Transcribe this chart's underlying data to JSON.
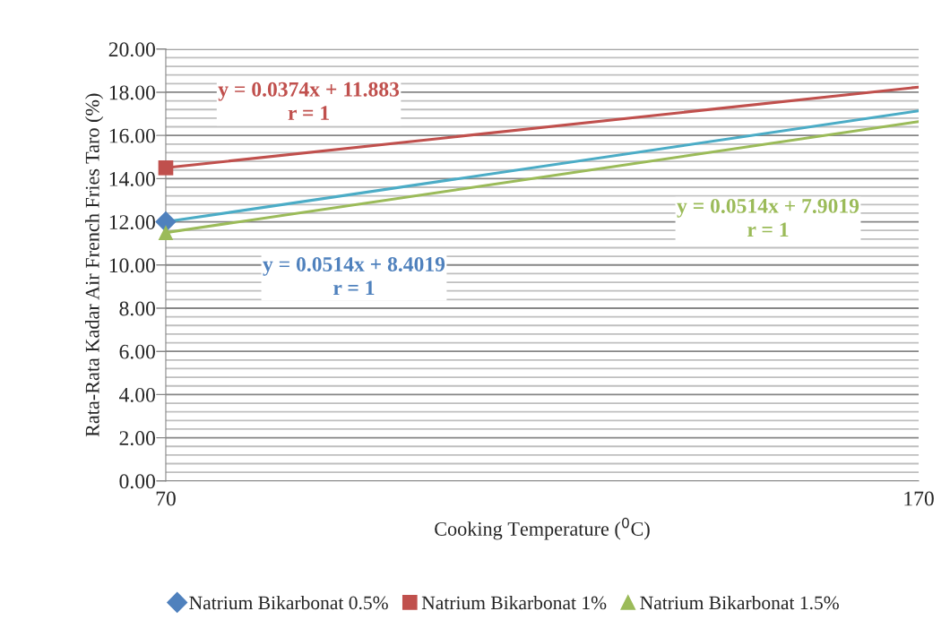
{
  "chart_data": {
    "type": "scatter",
    "xlabel": "Cooking Temperature ($^{0}$C)",
    "ylabel": "Rata-Rata Kadar Air French Fries Taro (%)",
    "xlim": [
      70,
      170
    ],
    "xticks": [
      70,
      170
    ],
    "ylim": [
      0,
      20
    ],
    "yticks": [
      {
        "value": 0,
        "label": "0.00"
      },
      {
        "value": 0.4,
        "label": null
      },
      {
        "value": 0.8,
        "label": null
      },
      {
        "value": 1.2,
        "label": null
      },
      {
        "value": 1.6,
        "label": null
      },
      {
        "value": 2,
        "label": "2.00"
      },
      {
        "value": 2.4,
        "label": null
      },
      {
        "value": 2.8,
        "label": null
      },
      {
        "value": 3.2,
        "label": null
      },
      {
        "value": 3.6,
        "label": null
      },
      {
        "value": 4,
        "label": "4.00"
      },
      {
        "value": 4.4,
        "label": null
      },
      {
        "value": 4.8,
        "label": null
      },
      {
        "value": 5.2,
        "label": null
      },
      {
        "value": 5.6,
        "label": null
      },
      {
        "value": 6,
        "label": "6.00"
      },
      {
        "value": 6.4,
        "label": null
      },
      {
        "value": 6.8,
        "label": null
      },
      {
        "value": 7.2,
        "label": null
      },
      {
        "value": 7.6,
        "label": null
      },
      {
        "value": 8,
        "label": "8.00"
      },
      {
        "value": 8.4,
        "label": null
      },
      {
        "value": 8.8,
        "label": null
      },
      {
        "value": 9.2,
        "label": null
      },
      {
        "value": 9.6,
        "label": null
      },
      {
        "value": 10,
        "label": "10.00"
      },
      {
        "value": 10.4,
        "label": null
      },
      {
        "value": 10.8,
        "label": null
      },
      {
        "value": 11.2,
        "label": null
      },
      {
        "value": 11.6,
        "label": null
      },
      {
        "value": 12,
        "label": "12.00"
      },
      {
        "value": 12.4,
        "label": null
      },
      {
        "value": 12.8,
        "label": null
      },
      {
        "value": 13.2,
        "label": null
      },
      {
        "value": 13.6,
        "label": null
      },
      {
        "value": 14,
        "label": "14.00"
      },
      {
        "value": 14.4,
        "label": null
      },
      {
        "value": 14.8,
        "label": null
      },
      {
        "value": 15.2,
        "label": null
      },
      {
        "value": 15.6,
        "label": null
      },
      {
        "value": 16,
        "label": "16.00"
      },
      {
        "value": 16.4,
        "label": null
      },
      {
        "value": 16.8,
        "label": null
      },
      {
        "value": 17.2,
        "label": null
      },
      {
        "value": 17.6,
        "label": null
      },
      {
        "value": 18,
        "label": "18.00"
      },
      {
        "value": 18.4,
        "label": null
      },
      {
        "value": 18.8,
        "label": null
      },
      {
        "value": 19.2,
        "label": null
      },
      {
        "value": 19.6,
        "label": null
      },
      {
        "value": 20,
        "label": "20.00"
      }
    ],
    "grid": "y",
    "legend": "bottom",
    "x": [
      70,
      170
    ],
    "series": [
      {
        "name": "Natrium Bikarbonat 0.5%",
        "marker": "diamond",
        "color": "#4f81bd",
        "values": [
          12.0,
          null
        ]
      },
      {
        "name": "Natrium Bikarbonat 1%",
        "marker": "square",
        "color": "#c0504d",
        "values": [
          14.5,
          null
        ]
      },
      {
        "name": "Natrium Bikarbonat 1.5%",
        "marker": "triangle",
        "color": "#9bbb59",
        "values": [
          11.5,
          null
        ]
      },
      {
        "type": "line",
        "marker": "none",
        "color": "#4bacc6",
        "values": [
          12.0,
          17.14
        ]
      },
      {
        "type": "line",
        "marker": "none",
        "color": "#c0504d",
        "values": [
          14.5,
          18.24
        ]
      },
      {
        "type": "line",
        "marker": "none",
        "color": "#9bbb59",
        "values": [
          11.5,
          16.64
        ]
      }
    ],
    "annotations": [
      "y = 0.0514x + 8.4019\nr = 1",
      "y = 0.0374x + 11.883\nr = 1",
      "y = 0.0514x + 7.9019\nr = 1"
    ]
  }
}
